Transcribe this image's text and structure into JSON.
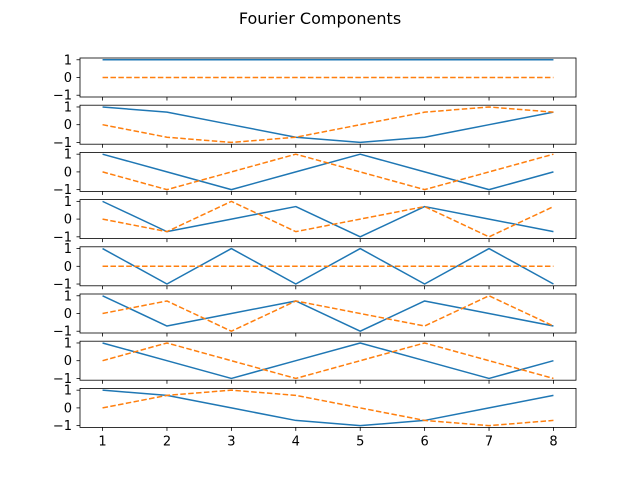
{
  "chart_data": {
    "type": "line",
    "title": "Fourier Components",
    "x": [
      1,
      2,
      3,
      4,
      5,
      6,
      7,
      8
    ],
    "x_ticks": [
      "1",
      "2",
      "3",
      "4",
      "5",
      "6",
      "7",
      "8"
    ],
    "y_ticks": [
      "1",
      "0",
      "−1"
    ],
    "ylim": [
      -1,
      1
    ],
    "grid": false,
    "legend": "none",
    "colors": {
      "real": "#1f77b4",
      "imag": "#ff7f0e"
    },
    "panels": [
      {
        "real": [
          1,
          1,
          1,
          1,
          1,
          1,
          1,
          1
        ],
        "imag": [
          0,
          0,
          0,
          0,
          0,
          0,
          0,
          0
        ]
      },
      {
        "real": [
          1,
          0.707,
          0,
          -0.707,
          -1,
          -0.707,
          0,
          0.707
        ],
        "imag": [
          0,
          -0.707,
          -1,
          -0.707,
          0,
          0.707,
          1,
          0.707
        ]
      },
      {
        "real": [
          1,
          0,
          -1,
          0,
          1,
          0,
          -1,
          0
        ],
        "imag": [
          0,
          -1,
          0,
          1,
          0,
          -1,
          0,
          1
        ]
      },
      {
        "real": [
          1,
          -0.707,
          0,
          0.707,
          -1,
          0.707,
          0,
          -0.707
        ],
        "imag": [
          0,
          -0.707,
          1,
          -0.707,
          0,
          0.707,
          -1,
          0.707
        ]
      },
      {
        "real": [
          1,
          -1,
          1,
          -1,
          1,
          -1,
          1,
          -1
        ],
        "imag": [
          0,
          0,
          0,
          0,
          0,
          0,
          0,
          0
        ]
      },
      {
        "real": [
          1,
          -0.707,
          0,
          0.707,
          -1,
          0.707,
          0,
          -0.707
        ],
        "imag": [
          0,
          0.707,
          -1,
          0.707,
          0,
          -0.707,
          1,
          -0.707
        ]
      },
      {
        "real": [
          1,
          0,
          -1,
          0,
          1,
          0,
          -1,
          0
        ],
        "imag": [
          0,
          1,
          0,
          -1,
          0,
          1,
          0,
          -1
        ]
      },
      {
        "real": [
          1,
          0.707,
          0,
          -0.707,
          -1,
          -0.707,
          0,
          0.707
        ],
        "imag": [
          0,
          0.707,
          1,
          0.707,
          0,
          -0.707,
          -1,
          -0.707
        ]
      }
    ]
  }
}
